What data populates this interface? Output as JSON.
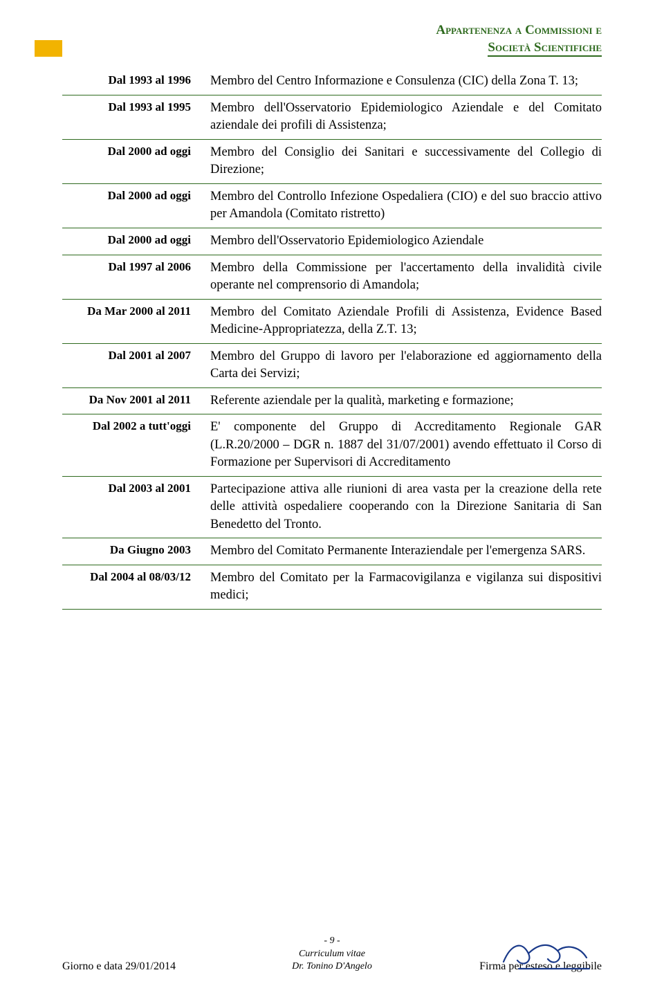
{
  "colors": {
    "accent": "#f2b300",
    "rule": "#2e6a1e",
    "headerText": "#2e6a1e",
    "bodyText": "#000000",
    "background": "#ffffff",
    "signatureStroke": "#1a3a8a"
  },
  "typography": {
    "headerFontSize": 19,
    "dateFontSize": 17,
    "descFontSize": 18.5,
    "footerFontSize": 15,
    "fontFamily": "Times New Roman"
  },
  "header": {
    "line1": "Appartenenza a Commissioni e",
    "line2": "Società Scientifiche"
  },
  "rows": [
    {
      "date": "Dal 1993 al 1996",
      "desc": "Membro del Centro Informazione e Consulenza (CIC) della Zona T. 13;"
    },
    {
      "date": "Dal 1993 al 1995",
      "desc": "Membro dell'Osservatorio Epidemiologico Aziendale e del Comitato aziendale dei profili di Assistenza;"
    },
    {
      "date": "Dal 2000 ad oggi",
      "desc": "Membro del Consiglio dei Sanitari e successivamente del Collegio di Direzione;"
    },
    {
      "date": "Dal 2000 ad oggi",
      "desc": "Membro del Controllo Infezione Ospedaliera (CIO) e del suo braccio attivo per Amandola (Comitato ristretto)"
    },
    {
      "date": "Dal 2000 ad oggi",
      "desc": "Membro dell'Osservatorio Epidemiologico Aziendale"
    },
    {
      "date": "Dal 1997 al 2006",
      "desc": "Membro della Commissione per l'accertamento della invalidità civile operante nel comprensorio di Amandola;"
    },
    {
      "date": "Da Mar 2000 al 2011",
      "desc": "Membro del Comitato Aziendale Profili di Assistenza, Evidence Based Medicine-Appropriatezza, della Z.T. 13;"
    },
    {
      "date": "Dal 2001 al 2007",
      "desc": "Membro del Gruppo di lavoro per l'elaborazione ed aggiornamento della Carta dei Servizi;"
    },
    {
      "date": "Da Nov 2001 al 2011",
      "desc": "Referente aziendale per la qualità, marketing e formazione;"
    },
    {
      "date": "Dal 2002 a tutt'oggi",
      "desc": "E' componente del Gruppo di Accreditamento Regionale GAR (L.R.20/2000 – DGR n. 1887 del 31/07/2001) avendo effettuato il Corso di Formazione per Supervisori di Accreditamento"
    },
    {
      "date": "Dal 2003 al 2001",
      "desc": "Partecipazione attiva alle riunioni di area vasta per la creazione della rete delle attività ospedaliere cooperando con la Direzione Sanitaria di San Benedetto del Tronto."
    },
    {
      "date": "Da Giugno 2003",
      "desc": "Membro del Comitato Permanente Interaziendale per l'emergenza SARS."
    },
    {
      "date": "Dal 2004 al 08/03/12",
      "desc": "Membro del Comitato per la Farmacovigilanza e vigilanza sui dispositivi medici;"
    }
  ],
  "footer": {
    "leftLabel": "Giorno e data ",
    "leftDate": "29/01/2014",
    "centerLine1": "- 9 -",
    "centerLine2": "Curriculum vitae",
    "centerLine3": "Dr. Tonino D'Angelo",
    "right": "Firma per esteso e leggibile"
  }
}
